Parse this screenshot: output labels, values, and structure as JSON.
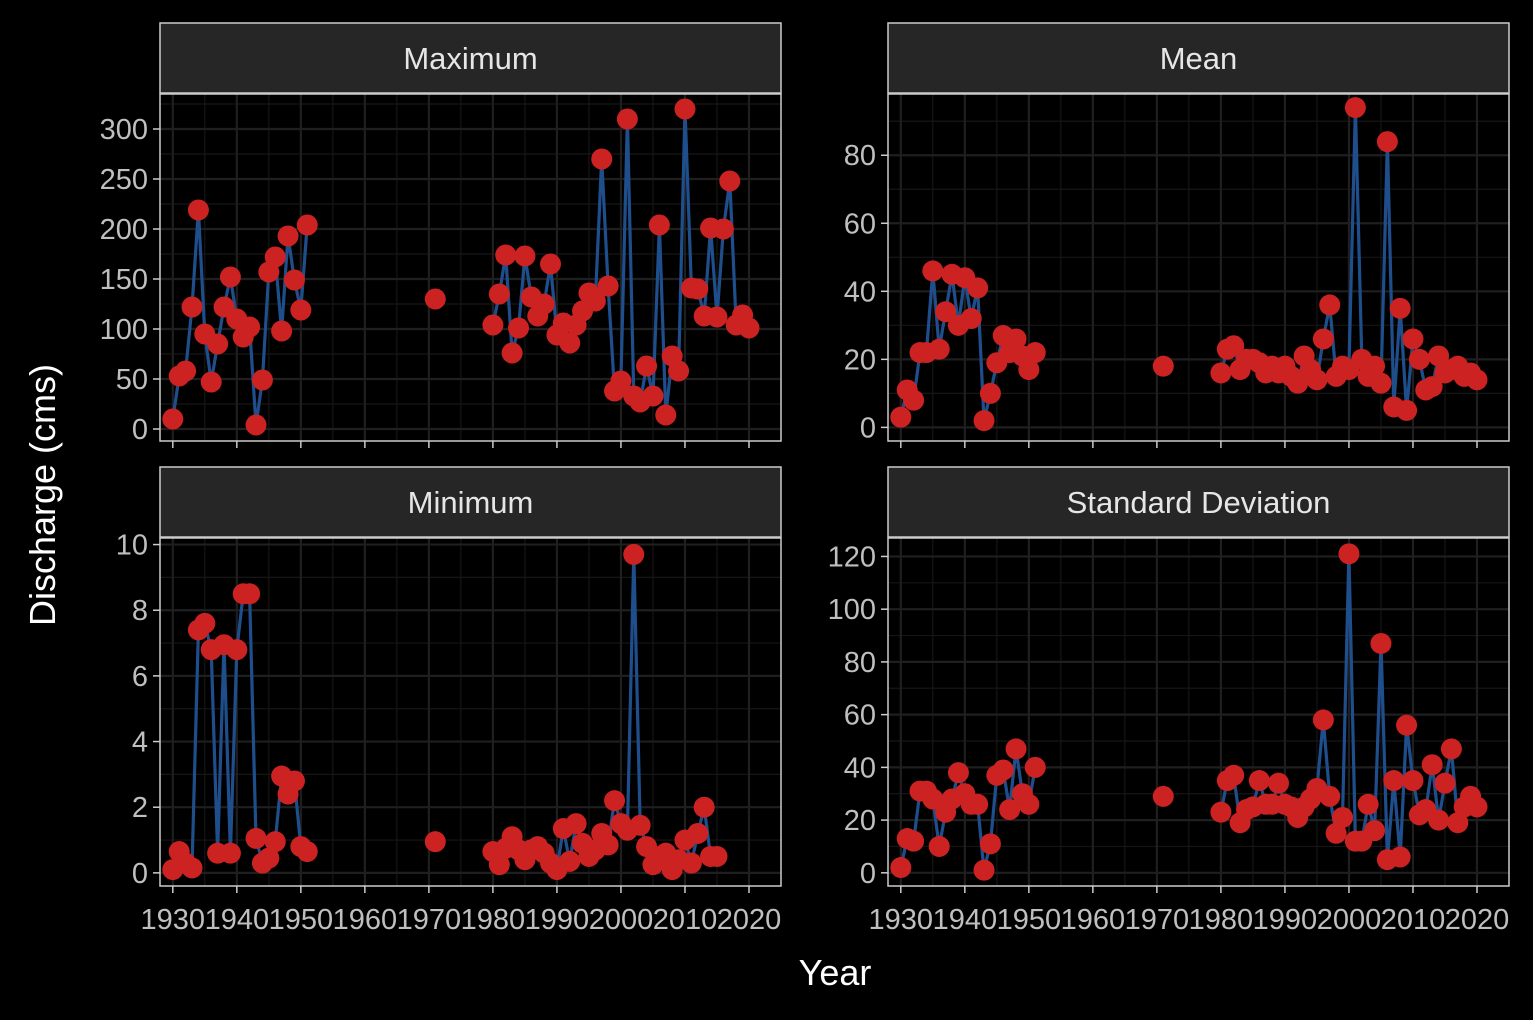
{
  "figure": {
    "xlabel": "Year",
    "ylabel": "Discharge (cms)",
    "colors": {
      "background": "#000000",
      "strip": "#262626",
      "grid": "#1f1f1f",
      "line": "#1f4e8c",
      "point": "#cc2222",
      "text": "#bfbfbf"
    }
  },
  "chart_data": [
    {
      "type": "line",
      "title": "Maximum",
      "xlim": [
        1928,
        2025
      ],
      "ylim": [
        -12,
        335
      ],
      "x_ticks": [
        1930,
        1940,
        1950,
        1960,
        1970,
        1980,
        1990,
        2000,
        2010,
        2020
      ],
      "y_ticks": [
        0,
        50,
        100,
        150,
        200,
        250,
        300
      ],
      "series": [
        {
          "points": [
            [
              1930,
              10
            ],
            [
              1931,
              53
            ],
            [
              1932,
              58
            ],
            [
              1933,
              122
            ],
            [
              1934,
              219
            ],
            [
              1935,
              95
            ],
            [
              1936,
              47
            ],
            [
              1937,
              85
            ],
            [
              1938,
              122
            ],
            [
              1939,
              152
            ],
            [
              1940,
              110
            ],
            [
              1941,
              92
            ],
            [
              1942,
              102
            ],
            [
              1943,
              4
            ],
            [
              1944,
              49
            ],
            [
              1945,
              157
            ],
            [
              1946,
              172
            ],
            [
              1947,
              98
            ],
            [
              1948,
              193
            ],
            [
              1949,
              149
            ],
            [
              1950,
              119
            ],
            [
              1951,
              204
            ]
          ]
        },
        {
          "points": [
            [
              1971,
              130
            ]
          ]
        },
        {
          "points": [
            [
              1980,
              104
            ],
            [
              1981,
              135
            ],
            [
              1982,
              174
            ],
            [
              1983,
              76
            ],
            [
              1984,
              101
            ],
            [
              1985,
              173
            ],
            [
              1986,
              132
            ],
            [
              1987,
              113
            ],
            [
              1988,
              125
            ],
            [
              1989,
              165
            ],
            [
              1990,
              94
            ],
            [
              1991,
              106
            ],
            [
              1992,
              86
            ],
            [
              1993,
              104
            ],
            [
              1994,
              118
            ],
            [
              1995,
              136
            ],
            [
              1996,
              128
            ],
            [
              1997,
              270
            ],
            [
              1998,
              143
            ],
            [
              1999,
              38
            ],
            [
              2000,
              48
            ],
            [
              2001,
              310
            ],
            [
              2002,
              33
            ],
            [
              2003,
              27
            ],
            [
              2004,
              63
            ],
            [
              2005,
              33
            ],
            [
              2006,
              204
            ],
            [
              2007,
              14
            ],
            [
              2008,
              73
            ],
            [
              2009,
              58
            ],
            [
              2010,
              320
            ],
            [
              2011,
              141
            ],
            [
              2012,
              140
            ],
            [
              2013,
              113
            ],
            [
              2014,
              201
            ],
            [
              2015,
              112
            ],
            [
              2016,
              200
            ],
            [
              2017,
              248
            ],
            [
              2018,
              104
            ],
            [
              2019,
              114
            ],
            [
              2020,
              101
            ]
          ]
        }
      ]
    },
    {
      "type": "line",
      "title": "Mean",
      "xlim": [
        1928,
        2025
      ],
      "ylim": [
        -4,
        98
      ],
      "x_ticks": [
        1930,
        1940,
        1950,
        1960,
        1970,
        1980,
        1990,
        2000,
        2010,
        2020
      ],
      "y_ticks": [
        0,
        20,
        40,
        60,
        80
      ],
      "series": [
        {
          "points": [
            [
              1930,
              3
            ],
            [
              1931,
              11
            ],
            [
              1932,
              8
            ],
            [
              1933,
              22
            ],
            [
              1934,
              22
            ],
            [
              1935,
              46
            ],
            [
              1936,
              23
            ],
            [
              1937,
              34
            ],
            [
              1938,
              45
            ],
            [
              1939,
              30
            ],
            [
              1940,
              44
            ],
            [
              1941,
              32
            ],
            [
              1942,
              41
            ],
            [
              1943,
              2
            ],
            [
              1944,
              10
            ],
            [
              1945,
              19
            ],
            [
              1946,
              27
            ],
            [
              1947,
              22
            ],
            [
              1948,
              26
            ],
            [
              1949,
              21
            ],
            [
              1950,
              17
            ],
            [
              1951,
              22
            ]
          ]
        },
        {
          "points": [
            [
              1971,
              18
            ]
          ]
        },
        {
          "points": [
            [
              1980,
              16
            ],
            [
              1981,
              23
            ],
            [
              1982,
              24
            ],
            [
              1983,
              17
            ],
            [
              1984,
              20
            ],
            [
              1985,
              20
            ],
            [
              1986,
              19
            ],
            [
              1987,
              16
            ],
            [
              1988,
              18
            ],
            [
              1989,
              16
            ],
            [
              1990,
              18
            ],
            [
              1991,
              15
            ],
            [
              1992,
              13
            ],
            [
              1993,
              21
            ],
            [
              1994,
              17
            ],
            [
              1995,
              14
            ],
            [
              1996,
              26
            ],
            [
              1997,
              36
            ],
            [
              1998,
              15
            ],
            [
              1999,
              18
            ],
            [
              2000,
              17
            ],
            [
              2001,
              94
            ],
            [
              2002,
              20
            ],
            [
              2003,
              15
            ],
            [
              2004,
              18
            ],
            [
              2005,
              13
            ],
            [
              2006,
              84
            ],
            [
              2007,
              6
            ],
            [
              2008,
              35
            ],
            [
              2009,
              5
            ],
            [
              2010,
              26
            ],
            [
              2011,
              20
            ],
            [
              2012,
              11
            ],
            [
              2013,
              12
            ],
            [
              2014,
              21
            ],
            [
              2015,
              16
            ],
            [
              2016,
              17
            ],
            [
              2017,
              18
            ],
            [
              2018,
              15
            ],
            [
              2019,
              16
            ],
            [
              2020,
              14
            ]
          ]
        }
      ]
    },
    {
      "type": "line",
      "title": "Minimum",
      "xlim": [
        1928,
        2025
      ],
      "ylim": [
        -0.4,
        10.2
      ],
      "x_ticks": [
        1930,
        1940,
        1950,
        1960,
        1970,
        1980,
        1990,
        2000,
        2010,
        2020
      ],
      "y_ticks": [
        0,
        2,
        4,
        6,
        8,
        10
      ],
      "series": [
        {
          "points": [
            [
              1930,
              0.1
            ],
            [
              1931,
              0.65
            ],
            [
              1932,
              0.3
            ],
            [
              1933,
              0.15
            ],
            [
              1934,
              7.4
            ],
            [
              1935,
              7.6
            ],
            [
              1936,
              6.8
            ],
            [
              1937,
              0.6
            ],
            [
              1938,
              6.95
            ],
            [
              1939,
              0.6
            ],
            [
              1940,
              6.8
            ],
            [
              1941,
              8.5
            ],
            [
              1942,
              8.5
            ],
            [
              1943,
              1.05
            ],
            [
              1944,
              0.3
            ],
            [
              1945,
              0.45
            ],
            [
              1946,
              0.95
            ],
            [
              1947,
              2.95
            ],
            [
              1948,
              2.4
            ],
            [
              1949,
              2.8
            ],
            [
              1950,
              0.8
            ],
            [
              1951,
              0.65
            ]
          ]
        },
        {
          "points": [
            [
              1971,
              0.95
            ]
          ]
        },
        {
          "points": [
            [
              1980,
              0.65
            ],
            [
              1981,
              0.25
            ],
            [
              1982,
              0.75
            ],
            [
              1983,
              1.1
            ],
            [
              1984,
              0.7
            ],
            [
              1985,
              0.4
            ],
            [
              1986,
              0.7
            ],
            [
              1987,
              0.8
            ],
            [
              1988,
              0.6
            ],
            [
              1989,
              0.3
            ],
            [
              1990,
              0.1
            ],
            [
              1991,
              1.35
            ],
            [
              1992,
              0.35
            ],
            [
              1993,
              1.5
            ],
            [
              1994,
              0.9
            ],
            [
              1995,
              0.5
            ],
            [
              1996,
              0.7
            ],
            [
              1997,
              1.2
            ],
            [
              1998,
              0.85
            ],
            [
              1999,
              2.2
            ],
            [
              2000,
              1.5
            ],
            [
              2001,
              1.3
            ],
            [
              2002,
              9.7
            ],
            [
              2003,
              1.45
            ],
            [
              2004,
              0.8
            ],
            [
              2005,
              0.25
            ],
            [
              2006,
              0.5
            ],
            [
              2007,
              0.6
            ],
            [
              2008,
              0.1
            ],
            [
              2009,
              0.4
            ],
            [
              2010,
              1.0
            ],
            [
              2011,
              0.3
            ],
            [
              2012,
              1.2
            ],
            [
              2013,
              2.0
            ],
            [
              2014,
              0.5
            ],
            [
              2015,
              0.5
            ]
          ]
        }
      ]
    },
    {
      "type": "line",
      "title": "Standard Deviation",
      "xlim": [
        1928,
        2025
      ],
      "ylim": [
        -5,
        127
      ],
      "x_ticks": [
        1930,
        1940,
        1950,
        1960,
        1970,
        1980,
        1990,
        2000,
        2010,
        2020
      ],
      "y_ticks": [
        0,
        20,
        40,
        60,
        80,
        100,
        120
      ],
      "series": [
        {
          "points": [
            [
              1930,
              2
            ],
            [
              1931,
              13
            ],
            [
              1932,
              12
            ],
            [
              1933,
              31
            ],
            [
              1934,
              31
            ],
            [
              1935,
              28
            ],
            [
              1936,
              10
            ],
            [
              1937,
              23
            ],
            [
              1938,
              28
            ],
            [
              1939,
              38
            ],
            [
              1940,
              30
            ],
            [
              1941,
              26
            ],
            [
              1942,
              26
            ],
            [
              1943,
              1
            ],
            [
              1944,
              11
            ],
            [
              1945,
              37
            ],
            [
              1946,
              39
            ],
            [
              1947,
              24
            ],
            [
              1948,
              47
            ],
            [
              1949,
              30
            ],
            [
              1950,
              26
            ],
            [
              1951,
              40
            ]
          ]
        },
        {
          "points": [
            [
              1971,
              29
            ]
          ]
        },
        {
          "points": [
            [
              1980,
              23
            ],
            [
              1981,
              35
            ],
            [
              1982,
              37
            ],
            [
              1983,
              19
            ],
            [
              1984,
              24
            ],
            [
              1985,
              25
            ],
            [
              1986,
              35
            ],
            [
              1987,
              26
            ],
            [
              1988,
              26
            ],
            [
              1989,
              34
            ],
            [
              1990,
              26
            ],
            [
              1991,
              25
            ],
            [
              1992,
              21
            ],
            [
              1993,
              25
            ],
            [
              1994,
              28
            ],
            [
              1995,
              32
            ],
            [
              1996,
              58
            ],
            [
              1997,
              29
            ],
            [
              1998,
              15
            ],
            [
              1999,
              21
            ],
            [
              2000,
              121
            ],
            [
              2001,
              12
            ],
            [
              2002,
              12
            ],
            [
              2003,
              26
            ],
            [
              2004,
              16
            ],
            [
              2005,
              87
            ],
            [
              2006,
              5
            ],
            [
              2007,
              35
            ],
            [
              2008,
              6
            ],
            [
              2009,
              56
            ],
            [
              2010,
              35
            ],
            [
              2011,
              22
            ],
            [
              2012,
              24
            ],
            [
              2013,
              41
            ],
            [
              2014,
              20
            ],
            [
              2015,
              34
            ],
            [
              2016,
              47
            ],
            [
              2017,
              19
            ],
            [
              2018,
              25
            ],
            [
              2019,
              29
            ],
            [
              2020,
              25
            ]
          ]
        }
      ]
    }
  ]
}
